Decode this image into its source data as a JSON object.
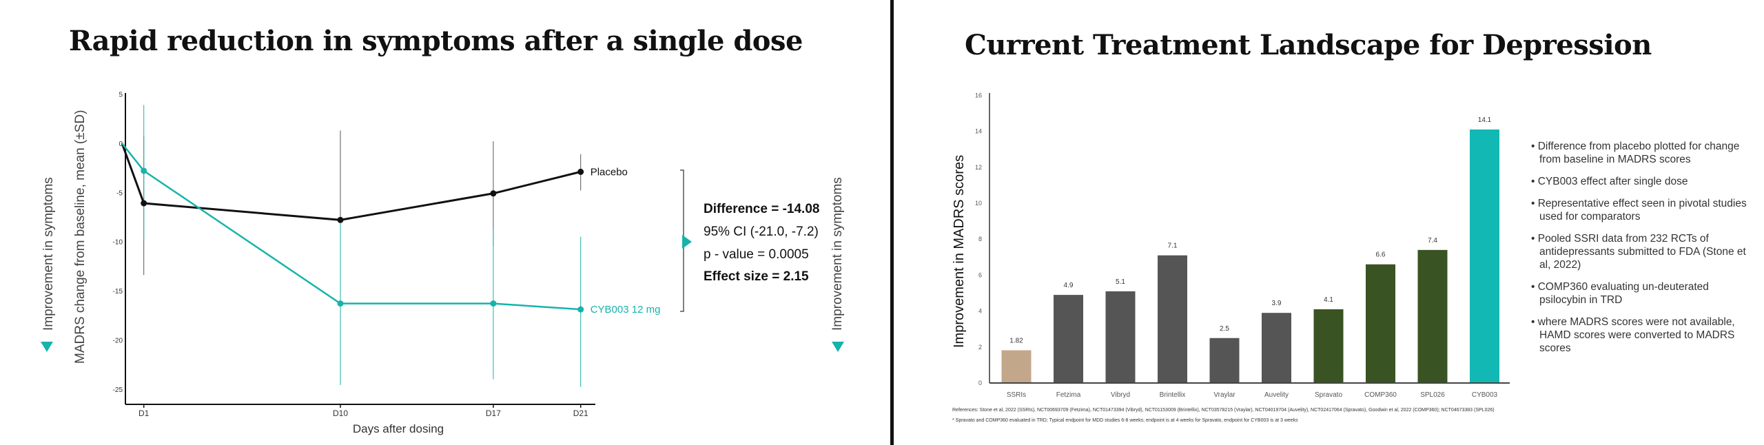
{
  "left": {
    "title": "Rapid reduction in symptoms after a single dose",
    "improvement_label": "Improvement in symptoms",
    "stats": {
      "difference": "Difference = -14.08",
      "ci": "95% CI (-21.0, -7.2)",
      "p_value": "p - value = 0.0005",
      "effect_size": "Effect size = 2.15"
    },
    "colors": {
      "placebo": "#111111",
      "cyb003": "#17b3ab"
    }
  },
  "right": {
    "title": "Current Treatment Landscape for Depression",
    "bullets": [
      "• Difference from placebo plotted for change from baseline in MADRS scores",
      "• CYB003 effect after single dose",
      "• Representative effect seen in pivotal studies used for comparators",
      "• Pooled SSRI data from 232 RCTs of antidepressants submitted to FDA (Stone et al, 2022)",
      "• COMP360 evaluating un-deuterated psilocybin in TRD",
      "• where MADRS scores were not available, HAMD scores were converted to MADRS scores"
    ],
    "references": "References: Stone et al, 2022 (SSRIs), NCT00693709 (Fetzima), NCT01473394 (Vibryd), NCT01153009 (Brintellix), NCT03578215 (Vraylar), NCT04019704 (Auvelity), NCT02417064 (Spravato), Goodwin et al, 2022 (COMP360); NCT04673383 (SPL026)",
    "footnote": "* Spravato and COMP360 evaluated in TRD; Typical endpoint for MDD studies 6-8 weeks; endpoint is at 4 weeks for Spravato, endpoint for CYB003 is at 3 weeks"
  },
  "chart_data": [
    {
      "type": "line",
      "title": "Rapid reduction in symptoms after a single dose",
      "xlabel": "Days after dosing",
      "ylabel": "MADRS change from baseline, mean (±SD)",
      "x": [
        0,
        1,
        10,
        17,
        21
      ],
      "x_tick_values": [
        1,
        10,
        17,
        21
      ],
      "x_tick_labels": [
        "D1",
        "D10",
        "D17",
        "D21"
      ],
      "ylim": [
        -27,
        5
      ],
      "y_ticks": [
        5,
        0,
        -5,
        -10,
        -15,
        -20,
        -25
      ],
      "series": [
        {
          "name": "Placebo",
          "color": "#111111",
          "values": [
            0,
            -6.1,
            -7.8,
            -5.1,
            -2.9
          ],
          "err_low": [
            null,
            -13.4,
            -17.0,
            -10.5,
            -4.8
          ],
          "err_high": [
            null,
            0.8,
            1.3,
            0.2,
            -1.1
          ]
        },
        {
          "name": "CYB003 12 mg",
          "color": "#17b3ab",
          "values": [
            0,
            -2.8,
            -16.3,
            -16.3,
            -16.9
          ],
          "err_low": [
            null,
            -9.9,
            -24.6,
            -24.0,
            -24.8
          ],
          "err_high": [
            null,
            3.9,
            -8.0,
            -8.6,
            -9.5
          ]
        }
      ],
      "legend": "inline-right"
    },
    {
      "type": "bar",
      "title": "Current Treatment Landscape for Depression",
      "ylabel": "Improvement in MADRS scores",
      "xlabel": "",
      "ylim": [
        0,
        16
      ],
      "y_ticks": [
        0,
        2,
        4,
        6,
        8,
        10,
        12,
        14,
        16
      ],
      "categories": [
        "SSRIs",
        "Fetzima",
        "Vibryd",
        "Brintellix",
        "Vraylar",
        "Auvelity",
        "Spravato",
        "COMP360",
        "SPL026",
        "CYB003"
      ],
      "values": [
        1.82,
        4.9,
        5.1,
        7.1,
        2.5,
        3.9,
        4.1,
        6.6,
        7.4,
        14.1
      ],
      "value_labels": [
        "1.82",
        "4.9",
        "5.1",
        "7.1",
        "2.5",
        "3.9",
        "4.1",
        "6.6",
        "7.4",
        "14.1"
      ],
      "colors": [
        "#c2a78b",
        "#555555",
        "#555555",
        "#555555",
        "#555555",
        "#555555",
        "#3a5322",
        "#3a5322",
        "#3a5322",
        "#12b8b3"
      ]
    }
  ]
}
